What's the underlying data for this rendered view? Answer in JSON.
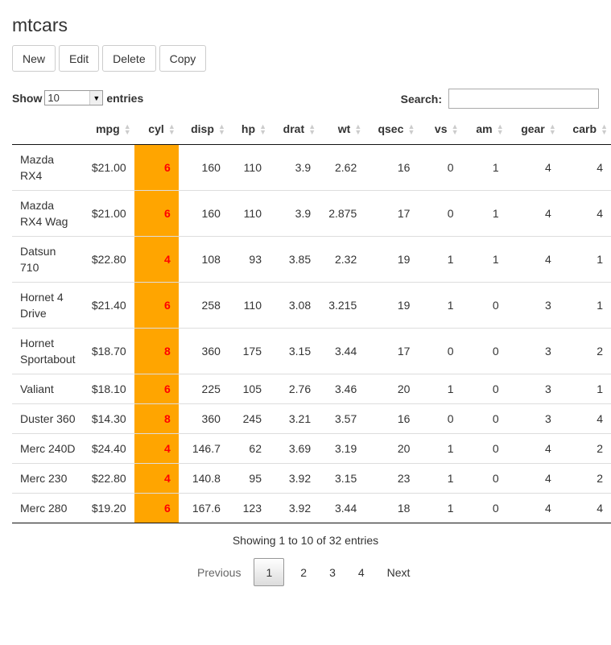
{
  "title": "mtcars",
  "buttons": {
    "new": "New",
    "edit": "Edit",
    "delete": "Delete",
    "copy": "Copy"
  },
  "length": {
    "prefix": "Show",
    "value": "10",
    "suffix": "entries"
  },
  "search": {
    "label": "Search:",
    "value": ""
  },
  "columns": [
    "",
    "mpg",
    "cyl",
    "disp",
    "hp",
    "drat",
    "wt",
    "qsec",
    "vs",
    "am",
    "gear",
    "carb"
  ],
  "rows": [
    {
      "name_l1": "Mazda",
      "name_l2": "RX4",
      "mpg": "$21.00",
      "cyl": "6",
      "disp": "160",
      "hp": "110",
      "drat": "3.9",
      "wt": "2.62",
      "qsec": "16",
      "vs": "0",
      "am": "1",
      "gear": "4",
      "carb": "4"
    },
    {
      "name_l1": "Mazda",
      "name_l2": "RX4 Wag",
      "mpg": "$21.00",
      "cyl": "6",
      "disp": "160",
      "hp": "110",
      "drat": "3.9",
      "wt": "2.875",
      "qsec": "17",
      "vs": "0",
      "am": "1",
      "gear": "4",
      "carb": "4"
    },
    {
      "name_l1": "Datsun",
      "name_l2": "710",
      "mpg": "$22.80",
      "cyl": "4",
      "disp": "108",
      "hp": "93",
      "drat": "3.85",
      "wt": "2.32",
      "qsec": "19",
      "vs": "1",
      "am": "1",
      "gear": "4",
      "carb": "1"
    },
    {
      "name_l1": "Hornet 4",
      "name_l2": "Drive",
      "mpg": "$21.40",
      "cyl": "6",
      "disp": "258",
      "hp": "110",
      "drat": "3.08",
      "wt": "3.215",
      "qsec": "19",
      "vs": "1",
      "am": "0",
      "gear": "3",
      "carb": "1"
    },
    {
      "name_l1": "Hornet",
      "name_l2": "Sportabout",
      "mpg": "$18.70",
      "cyl": "8",
      "disp": "360",
      "hp": "175",
      "drat": "3.15",
      "wt": "3.44",
      "qsec": "17",
      "vs": "0",
      "am": "0",
      "gear": "3",
      "carb": "2"
    },
    {
      "name_l1": "Valiant",
      "name_l2": "",
      "mpg": "$18.10",
      "cyl": "6",
      "disp": "225",
      "hp": "105",
      "drat": "2.76",
      "wt": "3.46",
      "qsec": "20",
      "vs": "1",
      "am": "0",
      "gear": "3",
      "carb": "1"
    },
    {
      "name_l1": "Duster 360",
      "name_l2": "",
      "mpg": "$14.30",
      "cyl": "8",
      "disp": "360",
      "hp": "245",
      "drat": "3.21",
      "wt": "3.57",
      "qsec": "16",
      "vs": "0",
      "am": "0",
      "gear": "3",
      "carb": "4"
    },
    {
      "name_l1": "Merc 240D",
      "name_l2": "",
      "mpg": "$24.40",
      "cyl": "4",
      "disp": "146.7",
      "hp": "62",
      "drat": "3.69",
      "wt": "3.19",
      "qsec": "20",
      "vs": "1",
      "am": "0",
      "gear": "4",
      "carb": "2"
    },
    {
      "name_l1": "Merc 230",
      "name_l2": "",
      "mpg": "$22.80",
      "cyl": "4",
      "disp": "140.8",
      "hp": "95",
      "drat": "3.92",
      "wt": "3.15",
      "qsec": "23",
      "vs": "1",
      "am": "0",
      "gear": "4",
      "carb": "2"
    },
    {
      "name_l1": "Merc 280",
      "name_l2": "",
      "mpg": "$19.20",
      "cyl": "6",
      "disp": "167.6",
      "hp": "123",
      "drat": "3.92",
      "wt": "3.44",
      "qsec": "18",
      "vs": "1",
      "am": "0",
      "gear": "4",
      "carb": "4"
    }
  ],
  "info": "Showing 1 to 10 of 32 entries",
  "pagination": {
    "previous": "Previous",
    "pages": [
      "1",
      "2",
      "3",
      "4"
    ],
    "next": "Next"
  },
  "colors": {
    "cyl_background": "#ffa500",
    "cyl_text": "#ff0000"
  },
  "icons": {
    "sort": "sort-both-icon",
    "dropdown": "chevron-down-icon"
  }
}
